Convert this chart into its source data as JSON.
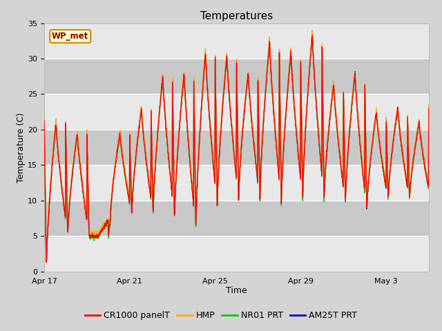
{
  "title": "Temperatures",
  "xlabel": "Time",
  "ylabel": "Temperature (C)",
  "ylim": [
    0,
    35
  ],
  "yticks": [
    0,
    5,
    10,
    15,
    20,
    25,
    30,
    35
  ],
  "x_tick_labels": [
    "Apr 17",
    "Apr 21",
    "Apr 25",
    "Apr 29",
    "May 3"
  ],
  "x_tick_positions": [
    0,
    4,
    8,
    12,
    16
  ],
  "annotation_text": "WP_met",
  "annotation_bg": "#ffffcc",
  "annotation_border": "#cc8800",
  "fig_bg": "#d4d4d4",
  "plot_bg": "#e8e8e8",
  "band_color": "#cccccc",
  "grid_color": "#ffffff",
  "colors": {
    "CR1000 panelT": "#ff0000",
    "HMP": "#ffaa00",
    "NR01 PRT": "#00cc00",
    "AM25T PRT": "#0000cc"
  },
  "line_width": 1.0,
  "title_fontsize": 11,
  "label_fontsize": 9,
  "tick_fontsize": 8,
  "legend_fontsize": 9,
  "n_days": 18,
  "n_per_day": 96,
  "day_maxima": [
    21,
    19.5,
    5,
    19.5,
    23,
    27.5,
    28,
    31,
    30.5,
    28,
    32.5,
    31,
    33.5,
    26.5,
    28,
    22.5,
    23,
    21
  ],
  "day_minima": [
    0.5,
    5,
    5,
    7.5,
    8,
    8,
    7.5,
    6,
    9,
    10,
    10,
    9.5,
    10,
    10,
    9.5,
    8.5,
    10,
    10
  ],
  "seed": 0
}
